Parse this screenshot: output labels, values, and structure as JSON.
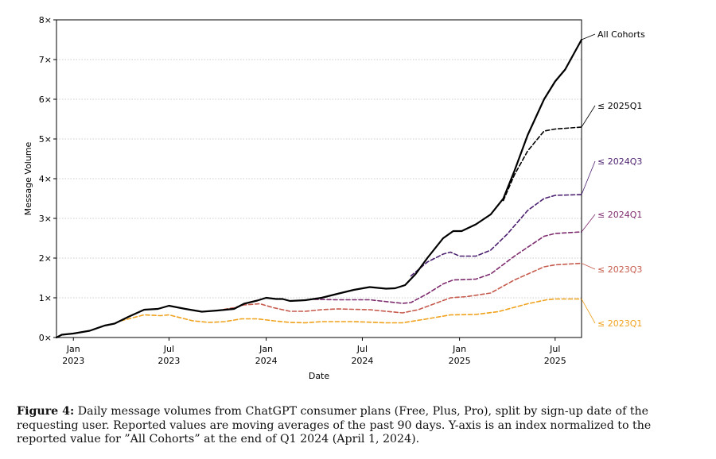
{
  "chart_data": {
    "type": "line",
    "xlabel": "Date",
    "ylabel": "Message Volume",
    "ylim": [
      0,
      8
    ],
    "xlim": [
      "2022-11-30",
      "2025-08-20"
    ],
    "yticks": [
      {
        "value": 0,
        "label": "0×"
      },
      {
        "value": 1,
        "label": "1×"
      },
      {
        "value": 2,
        "label": "2×"
      },
      {
        "value": 3,
        "label": "3×"
      },
      {
        "value": 4,
        "label": "4×"
      },
      {
        "value": 5,
        "label": "5×"
      },
      {
        "value": 6,
        "label": "6×"
      },
      {
        "value": 7,
        "label": "7×"
      },
      {
        "value": 8,
        "label": "8×"
      }
    ],
    "xticks": [
      {
        "date": "2023-01-01",
        "line1": "Jan",
        "line2": "2023"
      },
      {
        "date": "2023-07-01",
        "line1": "Jul",
        "line2": "2023"
      },
      {
        "date": "2024-01-01",
        "line1": "Jan",
        "line2": "2024"
      },
      {
        "date": "2024-07-01",
        "line1": "Jul",
        "line2": "2024"
      },
      {
        "date": "2025-01-01",
        "line1": "Jan",
        "line2": "2025"
      },
      {
        "date": "2025-07-01",
        "line1": "Jul",
        "line2": "2025"
      }
    ],
    "grid": "horizontal-dotted",
    "series": [
      {
        "name": "All Cohorts",
        "color": "#000000",
        "dashed": false,
        "points": [
          [
            "2022-11-30",
            0.0
          ],
          [
            "2022-12-10",
            0.07
          ],
          [
            "2023-01-01",
            0.1
          ],
          [
            "2023-02-01",
            0.17
          ],
          [
            "2023-03-01",
            0.3
          ],
          [
            "2023-03-20",
            0.35
          ],
          [
            "2023-04-15",
            0.52
          ],
          [
            "2023-05-15",
            0.7
          ],
          [
            "2023-06-10",
            0.72
          ],
          [
            "2023-07-01",
            0.8
          ],
          [
            "2023-08-01",
            0.72
          ],
          [
            "2023-09-01",
            0.65
          ],
          [
            "2023-10-01",
            0.68
          ],
          [
            "2023-11-01",
            0.72
          ],
          [
            "2023-11-20",
            0.85
          ],
          [
            "2023-12-15",
            0.93
          ],
          [
            "2024-01-01",
            1.0
          ],
          [
            "2024-01-20",
            0.97
          ],
          [
            "2024-02-01",
            0.97
          ],
          [
            "2024-02-15",
            0.92
          ],
          [
            "2024-03-15",
            0.94
          ],
          [
            "2024-04-15",
            1.0
          ],
          [
            "2024-05-15",
            1.1
          ],
          [
            "2024-06-15",
            1.2
          ],
          [
            "2024-07-15",
            1.27
          ],
          [
            "2024-08-15",
            1.23
          ],
          [
            "2024-09-01",
            1.24
          ],
          [
            "2024-09-20",
            1.32
          ],
          [
            "2024-10-10",
            1.6
          ],
          [
            "2024-11-01",
            2.0
          ],
          [
            "2024-12-01",
            2.5
          ],
          [
            "2024-12-20",
            2.68
          ],
          [
            "2025-01-05",
            2.68
          ],
          [
            "2025-02-01",
            2.85
          ],
          [
            "2025-03-01",
            3.1
          ],
          [
            "2025-03-25",
            3.5
          ],
          [
            "2025-04-15",
            4.2
          ],
          [
            "2025-05-10",
            5.1
          ],
          [
            "2025-06-10",
            6.0
          ],
          [
            "2025-07-01",
            6.45
          ],
          [
            "2025-07-20",
            6.75
          ],
          [
            "2025-08-20",
            7.5
          ]
        ]
      },
      {
        "name": "≤ 2025Q1",
        "color": "#000000",
        "dashed": true,
        "points": [
          [
            "2025-03-25",
            3.45
          ],
          [
            "2025-04-15",
            4.1
          ],
          [
            "2025-05-10",
            4.7
          ],
          [
            "2025-06-10",
            5.2
          ],
          [
            "2025-07-01",
            5.25
          ],
          [
            "2025-08-20",
            5.3
          ]
        ]
      },
      {
        "name": "≤ 2024Q3",
        "color": "#4b1f6f",
        "dashed": true,
        "points": [
          [
            "2024-10-01",
            1.55
          ],
          [
            "2024-11-01",
            1.9
          ],
          [
            "2024-12-01",
            2.1
          ],
          [
            "2024-12-15",
            2.15
          ],
          [
            "2025-01-01",
            2.05
          ],
          [
            "2025-02-01",
            2.05
          ],
          [
            "2025-03-01",
            2.2
          ],
          [
            "2025-04-01",
            2.6
          ],
          [
            "2025-05-10",
            3.2
          ],
          [
            "2025-06-10",
            3.5
          ],
          [
            "2025-07-01",
            3.58
          ],
          [
            "2025-08-20",
            3.6
          ]
        ]
      },
      {
        "name": "≤ 2024Q1",
        "color": "#7e2a6e",
        "dashed": true,
        "points": [
          [
            "2024-04-01",
            0.96
          ],
          [
            "2024-05-15",
            0.95
          ],
          [
            "2024-07-15",
            0.95
          ],
          [
            "2024-09-15",
            0.86
          ],
          [
            "2024-10-01",
            0.88
          ],
          [
            "2024-11-01",
            1.1
          ],
          [
            "2024-12-01",
            1.35
          ],
          [
            "2024-12-20",
            1.45
          ],
          [
            "2025-02-01",
            1.47
          ],
          [
            "2025-03-01",
            1.6
          ],
          [
            "2025-04-15",
            2.05
          ],
          [
            "2025-06-10",
            2.55
          ],
          [
            "2025-07-01",
            2.62
          ],
          [
            "2025-08-20",
            2.66
          ]
        ]
      },
      {
        "name": "≤ 2023Q3",
        "color": "#c65a4c",
        "dashed": true,
        "points": [
          [
            "2023-10-01",
            0.68
          ],
          [
            "2023-11-01",
            0.75
          ],
          [
            "2023-11-20",
            0.82
          ],
          [
            "2023-12-20",
            0.85
          ],
          [
            "2024-01-15",
            0.75
          ],
          [
            "2024-02-15",
            0.66
          ],
          [
            "2024-03-15",
            0.66
          ],
          [
            "2024-04-15",
            0.7
          ],
          [
            "2024-05-15",
            0.72
          ],
          [
            "2024-07-15",
            0.7
          ],
          [
            "2024-09-15",
            0.62
          ],
          [
            "2024-10-15",
            0.7
          ],
          [
            "2024-12-15",
            1.0
          ],
          [
            "2025-01-15",
            1.03
          ],
          [
            "2025-03-01",
            1.12
          ],
          [
            "2025-04-15",
            1.45
          ],
          [
            "2025-06-10",
            1.78
          ],
          [
            "2025-07-01",
            1.83
          ],
          [
            "2025-08-20",
            1.87
          ]
        ]
      },
      {
        "name": "≤ 2023Q1",
        "color": "#f0a21c",
        "dashed": true,
        "points": [
          [
            "2023-04-01",
            0.42
          ],
          [
            "2023-05-15",
            0.57
          ],
          [
            "2023-06-15",
            0.55
          ],
          [
            "2023-07-01",
            0.57
          ],
          [
            "2023-08-15",
            0.42
          ],
          [
            "2023-09-15",
            0.38
          ],
          [
            "2023-10-15",
            0.4
          ],
          [
            "2023-11-15",
            0.47
          ],
          [
            "2023-12-15",
            0.47
          ],
          [
            "2024-01-15",
            0.42
          ],
          [
            "2024-02-15",
            0.38
          ],
          [
            "2024-03-15",
            0.37
          ],
          [
            "2024-04-15",
            0.4
          ],
          [
            "2024-06-15",
            0.4
          ],
          [
            "2024-08-15",
            0.37
          ],
          [
            "2024-09-15",
            0.37
          ],
          [
            "2024-11-01",
            0.47
          ],
          [
            "2024-12-15",
            0.57
          ],
          [
            "2025-02-01",
            0.58
          ],
          [
            "2025-03-15",
            0.65
          ],
          [
            "2025-05-10",
            0.85
          ],
          [
            "2025-06-15",
            0.95
          ],
          [
            "2025-07-01",
            0.97
          ],
          [
            "2025-08-20",
            0.97
          ]
        ]
      }
    ],
    "end_labels": [
      {
        "series": "All Cohorts",
        "text": "All Cohorts",
        "color": "#000000"
      },
      {
        "series": "≤ 2025Q1",
        "text": "≤ 2025Q1",
        "color": "#000000"
      },
      {
        "series": "≤ 2024Q3",
        "text": "≤ 2024Q3",
        "color": "#4b1f6f"
      },
      {
        "series": "≤ 2024Q1",
        "text": "≤ 2024Q1",
        "color": "#7e2a6e"
      },
      {
        "series": "≤ 2023Q3",
        "text": "≤ 2023Q3",
        "color": "#c65a4c"
      },
      {
        "series": "≤ 2023Q1",
        "text": "≤ 2023Q1",
        "color": "#f0a21c"
      }
    ]
  },
  "caption": {
    "label": "Figure 4:",
    "text": "Daily message volumes from ChatGPT consumer plans (Free, Plus, Pro), split by sign-up date of the requesting user. Reported values are moving averages of the past 90 days. Y-axis is an index normalized to the reported value for ”All Cohorts” at the end of Q1 2024 (April 1, 2024)."
  }
}
